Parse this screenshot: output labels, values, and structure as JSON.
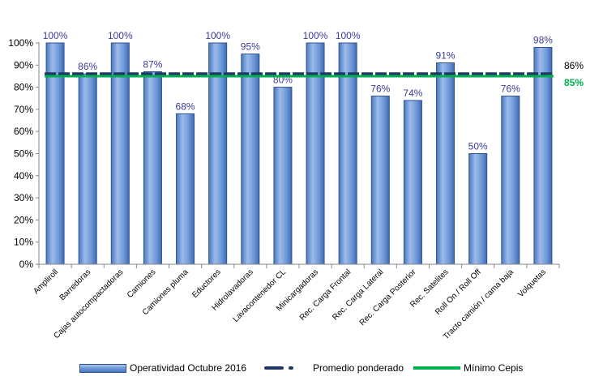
{
  "chart_data": {
    "type": "bar",
    "categories": [
      "Ampliroll",
      "Barredoras",
      "Cajas autocompactadoras",
      "Camiones",
      "Camiones pluma",
      "Eductores",
      "Hidrolavadoras",
      "Lavacontenedor CL",
      "Minicargadoras",
      "Rec. Carga Frontal",
      "Rec. Carga Lateral",
      "Rec. Carga Posterior",
      "Rec. Satelites",
      "Roll On / Roll Off",
      "Tracto camión / cama baja",
      "Volquetas"
    ],
    "series": [
      {
        "name": "Operatividad Octubre 2016",
        "kind": "bar",
        "values": [
          100,
          86,
          100,
          87,
          68,
          100,
          95,
          80,
          100,
          100,
          76,
          74,
          91,
          50,
          76,
          98
        ],
        "labels": [
          "100%",
          "86%",
          "100%",
          "87%",
          "68%",
          "100%",
          "95%",
          "80%",
          "100%",
          "100%",
          "76%",
          "74%",
          "91%",
          "50%",
          "76%",
          "98%"
        ]
      },
      {
        "name": "Promedio ponderado",
        "kind": "dashed-line",
        "value": 86,
        "label": "86%"
      },
      {
        "name": "Mínimo Cepis",
        "kind": "line",
        "value": 85,
        "label": "85%"
      }
    ],
    "yticks": [
      "0%",
      "10%",
      "20%",
      "30%",
      "40%",
      "50%",
      "60%",
      "70%",
      "80%",
      "90%",
      "100%"
    ],
    "ylim": [
      0,
      100
    ],
    "xlabel": "",
    "ylabel": "",
    "grid": false,
    "legend_position": "bottom",
    "colors": {
      "bar_light": "#a9c4ee",
      "bar_dark": "#4a78c2",
      "bar_border": "#2f528f",
      "bar_label": "#3b3b9c",
      "average_line": "#1f3864",
      "minimum_line": "#00b050"
    }
  }
}
